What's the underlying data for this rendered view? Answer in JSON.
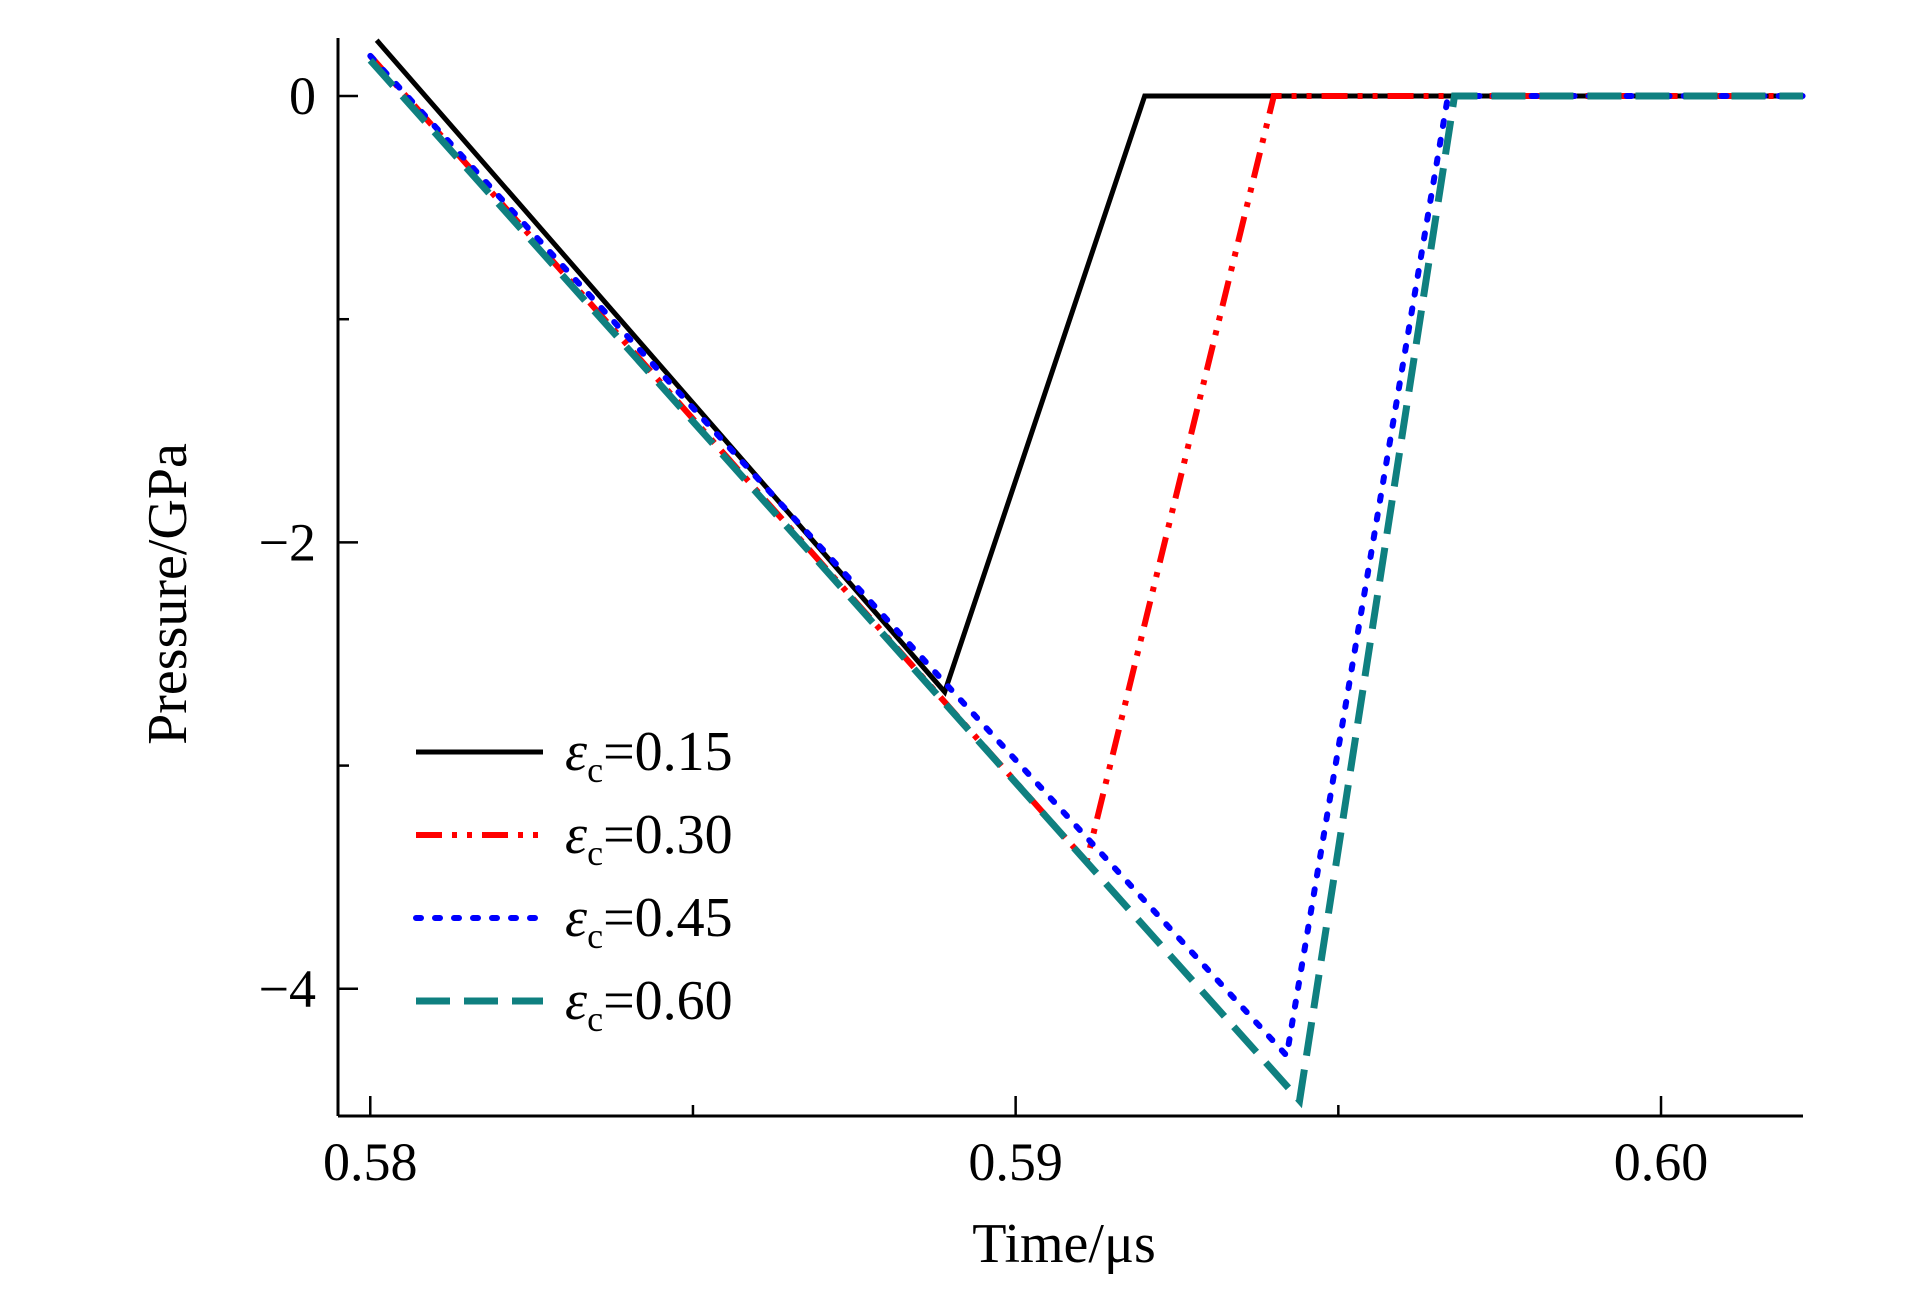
{
  "chart_data": {
    "type": "line",
    "xlabel": "Time/μs",
    "ylabel": "Pressure/GPa",
    "xlim": [
      0.5795,
      0.6022
    ],
    "ylim": [
      -4.57,
      0.26
    ],
    "xticks": [
      0.58,
      0.59,
      0.6
    ],
    "xtick_labels": [
      "0.58",
      "0.59",
      "0.60"
    ],
    "xminor": [
      0.585,
      0.595
    ],
    "yticks": [
      0,
      -2,
      -4
    ],
    "ytick_labels": [
      "0",
      "−2",
      "−4"
    ],
    "yminor": [
      -1,
      -3
    ],
    "legend_position": "bottom-left",
    "series": [
      {
        "name": "εc=0.15",
        "legend_symbol": "ε",
        "legend_sub": "c",
        "legend_rest": "=0.15",
        "color": "#000000",
        "style": "solid",
        "x": [
          0.5801,
          0.5889,
          0.592,
          0.6022
        ],
        "y": [
          0.25,
          -2.67,
          0.0,
          0.0
        ]
      },
      {
        "name": "εc=0.30",
        "legend_symbol": "ε",
        "legend_sub": "c",
        "legend_rest": "=0.30",
        "color": "#ff0000",
        "style": "dashdotdot",
        "x": [
          0.58,
          0.5911,
          0.594,
          0.6022
        ],
        "y": [
          0.18,
          -3.43,
          0.0,
          0.0
        ]
      },
      {
        "name": "εc=0.45",
        "legend_symbol": "ε",
        "legend_sub": "c",
        "legend_rest": "=0.45",
        "color": "#0000ff",
        "style": "dotted",
        "x": [
          0.58,
          0.5942,
          0.5967,
          0.6022
        ],
        "y": [
          0.18,
          -4.3,
          0.0,
          0.0
        ]
      },
      {
        "name": "εc=0.60",
        "legend_symbol": "ε",
        "legend_sub": "c",
        "legend_rest": "=0.60",
        "color": "#0f8080",
        "style": "dashed",
        "x": [
          0.58,
          0.5944,
          0.5968,
          0.6022
        ],
        "y": [
          0.16,
          -4.5,
          0.0,
          0.0
        ]
      }
    ]
  }
}
